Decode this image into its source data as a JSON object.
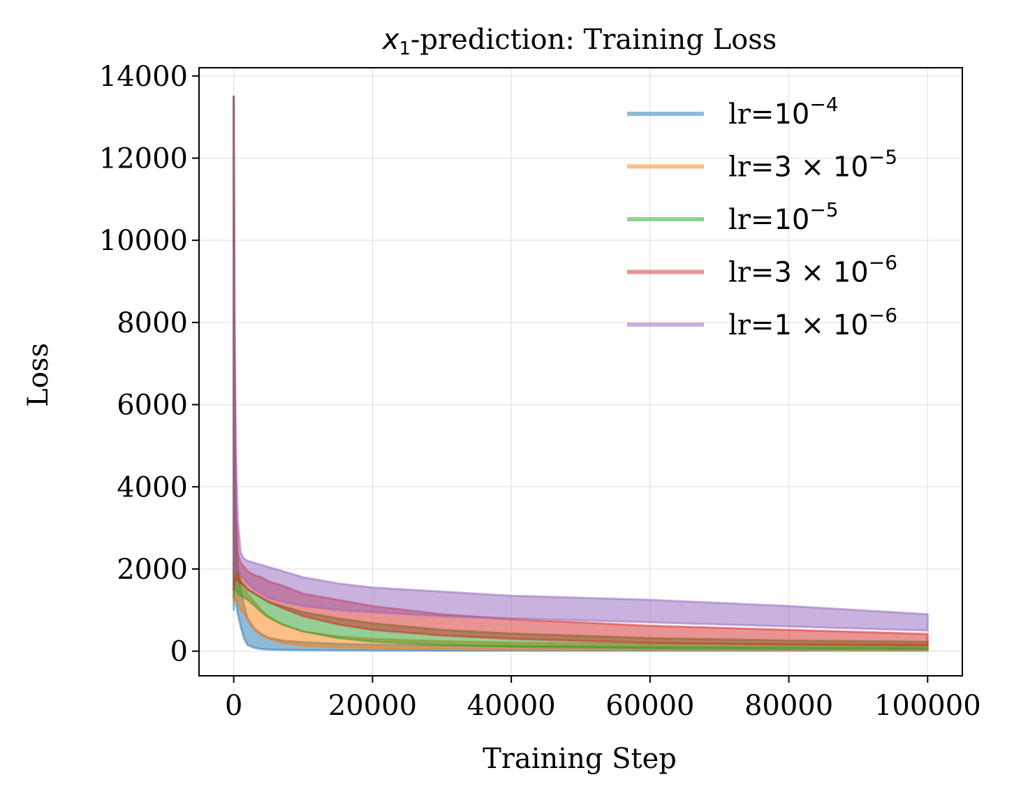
{
  "chart_data": {
    "type": "line",
    "title_prefix": "x",
    "title_sub": "1",
    "title_suffix": "-prediction: Training Loss",
    "xlabel": "Training Step",
    "ylabel": "Loss",
    "xlim": [
      -5000,
      105000
    ],
    "ylim": [
      -600,
      14200
    ],
    "xticks": [
      0,
      20000,
      40000,
      60000,
      80000,
      100000
    ],
    "xtick_labels": [
      "0",
      "20000",
      "40000",
      "60000",
      "80000",
      "100000"
    ],
    "yticks": [
      0,
      2000,
      4000,
      6000,
      8000,
      10000,
      12000,
      14000
    ],
    "ytick_labels": [
      "0",
      "2000",
      "4000",
      "6000",
      "8000",
      "10000",
      "12000",
      "14000"
    ],
    "grid": true,
    "legend_position": "top-right",
    "series": [
      {
        "name": "lr=10^-4",
        "label_prefix": "lr=",
        "label_math": "10",
        "label_exp": "−4",
        "color": "#1f77b4",
        "x": [
          0,
          100,
          300,
          600,
          1000,
          1500,
          2000,
          3000,
          4000,
          5000,
          7000,
          10000,
          15000,
          20000,
          30000,
          40000,
          60000,
          80000,
          100000
        ],
        "upper": [
          13500,
          6000,
          2600,
          1900,
          1500,
          1100,
          800,
          550,
          420,
          330,
          260,
          220,
          180,
          160,
          140,
          130,
          110,
          100,
          90
        ],
        "lower": [
          1000,
          1300,
          1200,
          900,
          600,
          300,
          150,
          80,
          50,
          40,
          30,
          25,
          20,
          15,
          10,
          10,
          10,
          10,
          10
        ]
      },
      {
        "name": "lr=3×10^-5",
        "label_prefix": "lr=",
        "label_math": "3 × 10",
        "label_exp": "−5",
        "color": "#ff7f0e",
        "x": [
          0,
          100,
          300,
          600,
          1000,
          1500,
          2000,
          3000,
          4000,
          5000,
          7000,
          10000,
          15000,
          20000,
          30000,
          40000,
          60000,
          80000,
          100000
        ],
        "upper": [
          13500,
          7000,
          3000,
          2000,
          1650,
          1500,
          1400,
          1200,
          1000,
          850,
          650,
          480,
          360,
          300,
          240,
          210,
          180,
          170,
          160
        ],
        "lower": [
          1200,
          1400,
          1300,
          1150,
          1000,
          900,
          750,
          500,
          380,
          300,
          200,
          130,
          90,
          70,
          50,
          40,
          30,
          25,
          20
        ]
      },
      {
        "name": "lr=10^-5",
        "label_prefix": "lr=",
        "label_math": "10",
        "label_exp": "−5",
        "color": "#2ca02c",
        "x": [
          0,
          100,
          300,
          600,
          1000,
          1500,
          2000,
          3000,
          4000,
          5000,
          7000,
          10000,
          15000,
          20000,
          30000,
          40000,
          60000,
          80000,
          100000
        ],
        "upper": [
          13500,
          7500,
          3200,
          2000,
          1700,
          1600,
          1500,
          1400,
          1300,
          1200,
          1100,
          950,
          800,
          680,
          520,
          430,
          320,
          260,
          230
        ],
        "lower": [
          1300,
          1500,
          1500,
          1400,
          1350,
          1300,
          1250,
          1100,
          950,
          820,
          650,
          480,
          320,
          230,
          150,
          110,
          70,
          55,
          50
        ]
      },
      {
        "name": "lr=3×10^-6",
        "label_prefix": "lr=",
        "label_math": "3 × 10",
        "label_exp": "−6",
        "color": "#d62728",
        "x": [
          0,
          100,
          300,
          600,
          1000,
          1500,
          2000,
          3000,
          4000,
          5000,
          7000,
          10000,
          15000,
          20000,
          30000,
          40000,
          60000,
          80000,
          100000
        ],
        "upper": [
          13500,
          8000,
          3500,
          2400,
          2150,
          2050,
          1950,
          1850,
          1800,
          1700,
          1600,
          1400,
          1250,
          1100,
          900,
          780,
          620,
          520,
          420
        ],
        "lower": [
          1500,
          1700,
          1750,
          1700,
          1650,
          1600,
          1500,
          1400,
          1300,
          1200,
          1050,
          850,
          650,
          520,
          380,
          300,
          200,
          160,
          140
        ]
      },
      {
        "name": "lr=1×10^-6",
        "label_prefix": "lr=",
        "label_math": "1 × 10",
        "label_exp": "−6",
        "color": "#9467bd",
        "x": [
          0,
          100,
          300,
          600,
          1000,
          1500,
          2000,
          3000,
          4000,
          5000,
          7000,
          10000,
          15000,
          20000,
          30000,
          40000,
          60000,
          80000,
          100000
        ],
        "upper": [
          13500,
          8500,
          5000,
          3200,
          2400,
          2250,
          2200,
          2150,
          2100,
          2050,
          1950,
          1800,
          1650,
          1550,
          1450,
          1350,
          1250,
          1100,
          900
        ],
        "lower": [
          1800,
          2000,
          2000,
          1950,
          1850,
          1750,
          1650,
          1500,
          1400,
          1300,
          1200,
          1100,
          1000,
          950,
          850,
          800,
          700,
          600,
          500
        ]
      }
    ]
  }
}
